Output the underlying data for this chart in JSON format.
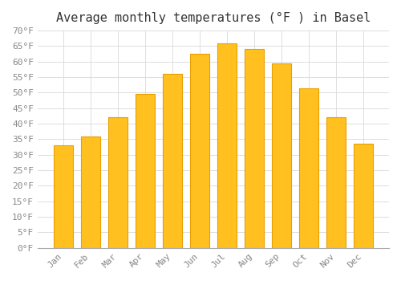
{
  "months": [
    "Jan",
    "Feb",
    "Mar",
    "Apr",
    "May",
    "Jun",
    "Jul",
    "Aug",
    "Sep",
    "Oct",
    "Nov",
    "Dec"
  ],
  "values": [
    33,
    36,
    42,
    49.5,
    56,
    62.5,
    66,
    64,
    59.5,
    51.5,
    42,
    33.5
  ],
  "bar_color": "#FFC020",
  "bar_edge_color": "#E8A000",
  "title": "Average monthly temperatures (°F ) in Basel",
  "ylim": [
    0,
    70
  ],
  "yticks": [
    0,
    5,
    10,
    15,
    20,
    25,
    30,
    35,
    40,
    45,
    50,
    55,
    60,
    65,
    70
  ],
  "ytick_labels": [
    "0°F",
    "5°F",
    "10°F",
    "15°F",
    "20°F",
    "25°F",
    "30°F",
    "35°F",
    "40°F",
    "45°F",
    "50°F",
    "55°F",
    "60°F",
    "65°F",
    "70°F"
  ],
  "background_color": "#FFFFFF",
  "grid_color": "#DDDDDD",
  "title_fontsize": 11,
  "tick_fontsize": 8,
  "font_family": "monospace"
}
